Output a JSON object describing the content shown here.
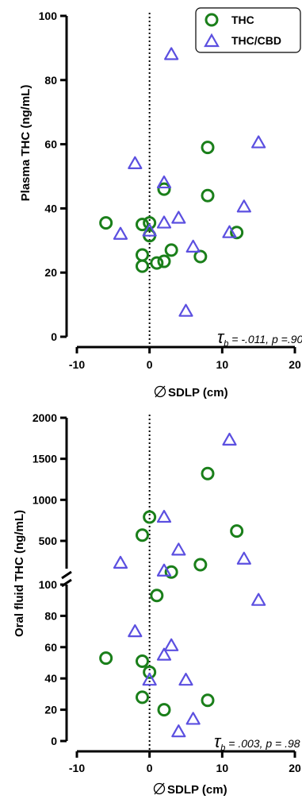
{
  "colors": {
    "thc": "#1a7f1a",
    "thc_cbd": "#5b4fe0",
    "axis": "#000000"
  },
  "legend": {
    "items": [
      {
        "label": "THC",
        "marker": "circle"
      },
      {
        "label": "THC/CBD",
        "marker": "triangle"
      }
    ]
  },
  "chart_data": [
    {
      "type": "scatter",
      "xlabel": "SDLP (cm)",
      "ylabel": "Plasma THC (ng/mL)",
      "xlim": [
        -10,
        20
      ],
      "ylim": [
        0,
        100
      ],
      "xticks": [
        "-10",
        "0",
        "10",
        "20"
      ],
      "yticks": [
        "0",
        "20",
        "40",
        "60",
        "80",
        "100"
      ],
      "stat_symbol": "τ",
      "stat_sub": "b",
      "stat_text": " = -.011, p =.90",
      "reference_line_x": 0,
      "legend": "top-right",
      "series": [
        {
          "name": "THC",
          "marker": "circle",
          "points": [
            [
              -6,
              35.5
            ],
            [
              -1,
              35
            ],
            [
              0,
              35.5
            ],
            [
              0,
              31.5
            ],
            [
              -1,
              25.5
            ],
            [
              -1,
              22
            ],
            [
              1,
              23
            ],
            [
              2,
              23.5
            ],
            [
              3,
              27
            ],
            [
              2,
              46
            ],
            [
              7,
              25
            ],
            [
              8,
              44
            ],
            [
              8,
              59
            ],
            [
              12,
              32.5
            ]
          ]
        },
        {
          "name": "THC/CBD",
          "marker": "triangle",
          "points": [
            [
              3,
              88
            ],
            [
              -2,
              54
            ],
            [
              2,
              48
            ],
            [
              2,
              35.5
            ],
            [
              4,
              37
            ],
            [
              0,
              33
            ],
            [
              -4,
              32
            ],
            [
              6,
              28
            ],
            [
              5,
              8
            ],
            [
              11,
              32.5
            ],
            [
              13,
              40.5
            ],
            [
              15,
              60.5
            ]
          ]
        }
      ]
    },
    {
      "type": "scatter",
      "xlabel": "SDLP (cm)",
      "ylabel": "Oral fluid THC (ng/mL)",
      "xlim": [
        -10,
        20
      ],
      "ylim": [
        0,
        2000
      ],
      "axis_break": [
        100,
        200
      ],
      "xticks": [
        "-10",
        "0",
        "10",
        "20"
      ],
      "yticks_lower": [
        "0",
        "20",
        "40",
        "60",
        "80",
        "100"
      ],
      "yticks_upper": [
        "500",
        "1000",
        "1500",
        "2000"
      ],
      "stat_symbol": "τ",
      "stat_sub": "b",
      "stat_text": " = .003, p = .98",
      "reference_line_x": 0,
      "series": [
        {
          "name": "THC",
          "marker": "circle",
          "points": [
            [
              8,
              1320
            ],
            [
              0,
              790
            ],
            [
              12,
              620
            ],
            [
              -1,
              570
            ],
            [
              7,
              210
            ],
            [
              3,
              120
            ],
            [
              1,
              93
            ],
            [
              -6,
              53
            ],
            [
              -1,
              51
            ],
            [
              0,
              44
            ],
            [
              -1,
              28
            ],
            [
              2,
              20
            ],
            [
              8,
              26
            ]
          ]
        },
        {
          "name": "THC/CBD",
          "marker": "triangle",
          "points": [
            [
              11,
              1730
            ],
            [
              2,
              790
            ],
            [
              4,
              390
            ],
            [
              13,
              280
            ],
            [
              -4,
              230
            ],
            [
              2,
              135
            ],
            [
              15,
              90
            ],
            [
              -2,
              70
            ],
            [
              3,
              61
            ],
            [
              2,
              55
            ],
            [
              5,
              39
            ],
            [
              0,
              39
            ],
            [
              6,
              14
            ],
            [
              4,
              6
            ]
          ]
        }
      ]
    }
  ]
}
